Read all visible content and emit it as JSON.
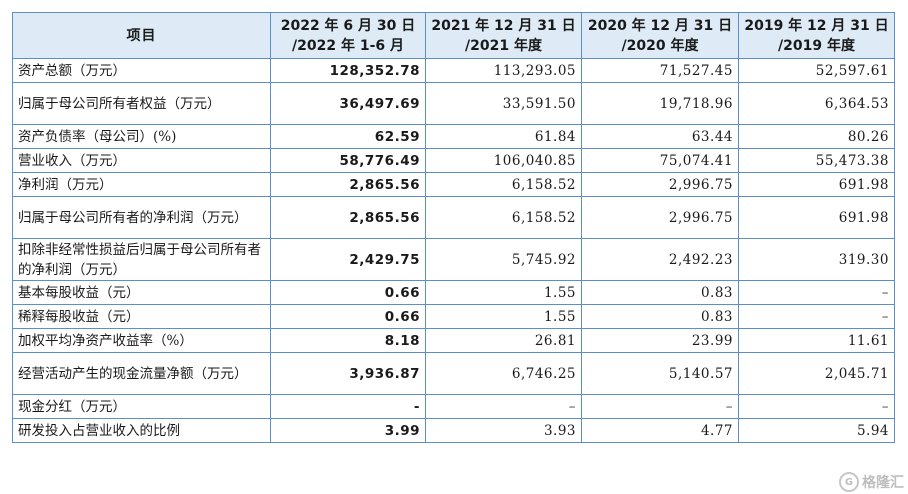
{
  "table": {
    "headers": [
      {
        "line1": "项目",
        "line2": ""
      },
      {
        "line1": "2022 年 6 月 30 日",
        "line2": "/2022 年 1-6 月"
      },
      {
        "line1": "2021 年 12 月 31 日",
        "line2": "/2021 年度"
      },
      {
        "line1": "2020 年 12 月 31 日",
        "line2": "/2020 年度"
      },
      {
        "line1": "2019 年 12 月 31 日",
        "line2": "/2019 年度"
      }
    ],
    "rows": [
      {
        "label": "资产总额（万元）",
        "values": [
          "128,352.78",
          "113,293.05",
          "71,527.45",
          "52,597.61"
        ]
      },
      {
        "label": "归属于母公司所有者权益（万元）",
        "values": [
          "36,497.69",
          "33,591.50",
          "19,718.96",
          "6,364.53"
        ]
      },
      {
        "label": "资产负债率（母公司）(%)",
        "values": [
          "62.59",
          "61.84",
          "63.44",
          "80.26"
        ]
      },
      {
        "label": "营业收入（万元）",
        "values": [
          "58,776.49",
          "106,040.85",
          "75,074.41",
          "55,473.38"
        ]
      },
      {
        "label": "净利润（万元）",
        "values": [
          "2,865.56",
          "6,158.52",
          "2,996.75",
          "691.98"
        ]
      },
      {
        "label": "归属于母公司所有者的净利润（万元）",
        "values": [
          "2,865.56",
          "6,158.52",
          "2,996.75",
          "691.98"
        ]
      },
      {
        "label": "扣除非经常性损益后归属于母公司所有者的净利润（万元）",
        "values": [
          "2,429.75",
          "5,745.92",
          "2,492.23",
          "319.30"
        ]
      },
      {
        "label": "基本每股收益（元）",
        "values": [
          "0.66",
          "1.55",
          "0.83",
          "–"
        ]
      },
      {
        "label": "稀释每股收益（元）",
        "values": [
          "0.66",
          "1.55",
          "0.83",
          "–"
        ]
      },
      {
        "label": "加权平均净资产收益率（%）",
        "values": [
          "8.18",
          "26.81",
          "23.99",
          "11.61"
        ]
      },
      {
        "label": "经营活动产生的现金流量净额（万元）",
        "values": [
          "3,936.87",
          "6,746.25",
          "5,140.57",
          "2,045.71"
        ]
      },
      {
        "label": "现金分红（万元）",
        "values": [
          "-",
          "–",
          "–",
          "–"
        ]
      },
      {
        "label": "研发投入占营业收入的比例",
        "values": [
          "3.99",
          "3.93",
          "4.77",
          "5.94"
        ]
      }
    ]
  },
  "watermark": {
    "logo_letter": "G",
    "text": "格隆汇"
  }
}
